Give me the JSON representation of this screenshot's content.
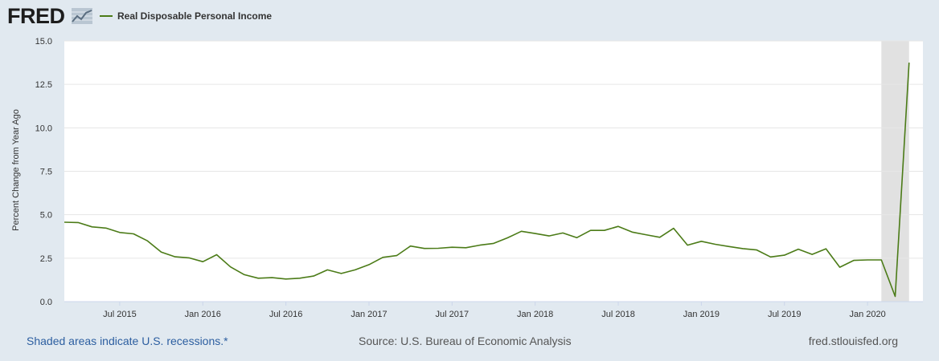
{
  "header": {
    "logo_text": "FRED",
    "logo_icon": "chart-line-icon",
    "legend_label": "Real Disposable Personal Income",
    "legend_color": "#4b7b17"
  },
  "footer": {
    "recession_note": "Shaded areas indicate U.S. recessions.*",
    "source": "Source: U.S. Bureau of Economic Analysis",
    "site": "fred.stlouisfed.org"
  },
  "chart_data": {
    "type": "line",
    "title": "",
    "xlabel": "",
    "ylabel": "Percent Change from Year Ago",
    "ylim": [
      0,
      15
    ],
    "yticks": [
      "0.0",
      "2.5",
      "5.0",
      "7.5",
      "10.0",
      "12.5",
      "15.0"
    ],
    "xlim": [
      "2015-03",
      "2020-05"
    ],
    "xticks": [
      {
        "label": "Jul 2015",
        "month": "2015-07"
      },
      {
        "label": "Jan 2016",
        "month": "2016-01"
      },
      {
        "label": "Jul 2016",
        "month": "2016-07"
      },
      {
        "label": "Jan 2017",
        "month": "2017-01"
      },
      {
        "label": "Jul 2017",
        "month": "2017-07"
      },
      {
        "label": "Jan 2018",
        "month": "2018-01"
      },
      {
        "label": "Jul 2018",
        "month": "2018-07"
      },
      {
        "label": "Jan 2019",
        "month": "2019-01"
      },
      {
        "label": "Jul 2019",
        "month": "2019-07"
      },
      {
        "label": "Jan 2020",
        "month": "2020-01"
      }
    ],
    "recessions": [
      {
        "start": "2020-02",
        "end": "2020-04"
      }
    ],
    "grid": true,
    "line_color": "#4b7b17",
    "recession_color": "#e1e1e1",
    "series": [
      {
        "name": "Real Disposable Personal Income",
        "x": [
          "2015-03",
          "2015-04",
          "2015-05",
          "2015-06",
          "2015-07",
          "2015-08",
          "2015-09",
          "2015-10",
          "2015-11",
          "2015-12",
          "2016-01",
          "2016-02",
          "2016-03",
          "2016-04",
          "2016-05",
          "2016-06",
          "2016-07",
          "2016-08",
          "2016-09",
          "2016-10",
          "2016-11",
          "2016-12",
          "2017-01",
          "2017-02",
          "2017-03",
          "2017-04",
          "2017-05",
          "2017-06",
          "2017-07",
          "2017-08",
          "2017-09",
          "2017-10",
          "2017-11",
          "2017-12",
          "2018-01",
          "2018-02",
          "2018-03",
          "2018-04",
          "2018-05",
          "2018-06",
          "2018-07",
          "2018-08",
          "2018-09",
          "2018-10",
          "2018-11",
          "2018-12",
          "2019-01",
          "2019-02",
          "2019-03",
          "2019-04",
          "2019-05",
          "2019-06",
          "2019-07",
          "2019-08",
          "2019-09",
          "2019-10",
          "2019-11",
          "2019-12",
          "2020-01",
          "2020-02",
          "2020-03",
          "2020-04"
        ],
        "values": [
          4.57,
          4.55,
          4.3,
          4.23,
          3.98,
          3.9,
          3.5,
          2.85,
          2.58,
          2.52,
          2.3,
          2.7,
          2.0,
          1.55,
          1.35,
          1.38,
          1.3,
          1.35,
          1.47,
          1.83,
          1.62,
          1.83,
          2.13,
          2.55,
          2.65,
          3.2,
          3.06,
          3.07,
          3.13,
          3.1,
          3.25,
          3.35,
          3.67,
          4.05,
          3.92,
          3.78,
          3.95,
          3.68,
          4.1,
          4.1,
          4.33,
          4.0,
          3.85,
          3.7,
          4.22,
          3.25,
          3.47,
          3.3,
          3.17,
          3.05,
          2.97,
          2.57,
          2.67,
          3.02,
          2.72,
          3.04,
          1.98,
          2.37,
          2.4,
          2.4,
          0.3,
          13.75
        ]
      }
    ]
  }
}
